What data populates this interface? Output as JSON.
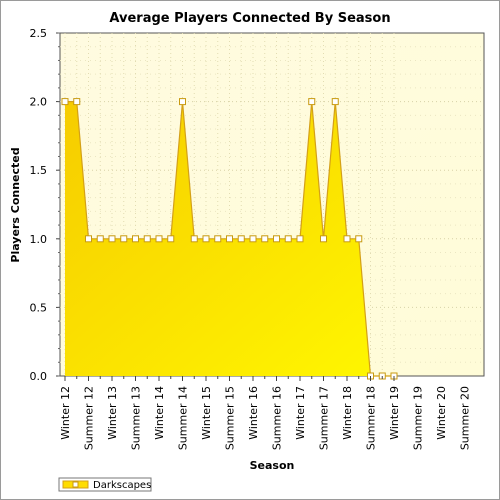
{
  "chart_data": {
    "type": "area",
    "title": "Average Players Connected By Season",
    "xlabel": "Season",
    "ylabel": "Players Connected",
    "ylim": [
      0,
      2.5
    ],
    "yticks": [
      "0.0",
      "0.5",
      "1.0",
      "1.5",
      "2.0",
      "2.5"
    ],
    "x_tick_labels": [
      "Winter 12",
      "Summer 12",
      "Winter 13",
      "Summer 13",
      "Winter 14",
      "Summer 14",
      "Winter 15",
      "Summer 15",
      "Winter 16",
      "Summer 16",
      "Winter 17",
      "Summer 17",
      "Winter 18",
      "Summer 18",
      "Winter 19",
      "Summer 19",
      "Winter 20",
      "Summer 20"
    ],
    "grid": true,
    "legend_position": "bottom-left",
    "series": [
      {
        "name": "Darkscapes",
        "color": "#ffdd00",
        "line_color": "#d4a017",
        "values": [
          2,
          2,
          1,
          1,
          1,
          1,
          1,
          1,
          1,
          1,
          2,
          1,
          1,
          1,
          1,
          1,
          1,
          1,
          1,
          1,
          1,
          2,
          1,
          2,
          1,
          1,
          0,
          0,
          0
        ]
      }
    ]
  }
}
